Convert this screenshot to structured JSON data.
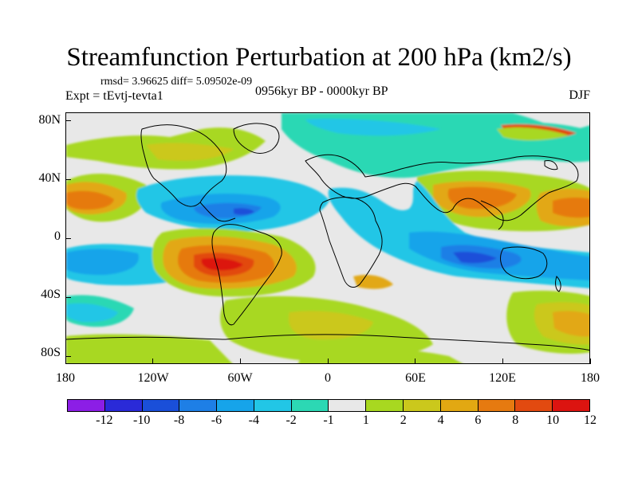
{
  "title": "Streamfunction Perturbation at 200 hPa (km2/s)",
  "stats": "rmsd= 3.96625 diff= 5.09502e-09",
  "expt": "Expt = tEvtj-tevta1",
  "period": "0956kyr BP - 0000kyr BP",
  "season": "DJF",
  "map": {
    "lat_labels": [
      "80N",
      "40N",
      "0",
      "40S",
      "80S"
    ],
    "lon_labels": [
      "180",
      "120W",
      "60W",
      "0",
      "60E",
      "120E",
      "180"
    ]
  },
  "colorbar": {
    "labels": [
      "-12",
      "-10",
      "-8",
      "-6",
      "-4",
      "-2",
      "-1",
      "1",
      "2",
      "4",
      "6",
      "8",
      "10",
      "12"
    ],
    "colors": [
      "#8c1ee6",
      "#2a2ad8",
      "#1a4fd9",
      "#1e7fe6",
      "#16a4ea",
      "#22c6e6",
      "#2cd8b4",
      "#e8e8e8",
      "#a8d820",
      "#cbc81c",
      "#e2a812",
      "#e67a10",
      "#e24a10",
      "#dc1410"
    ]
  }
}
